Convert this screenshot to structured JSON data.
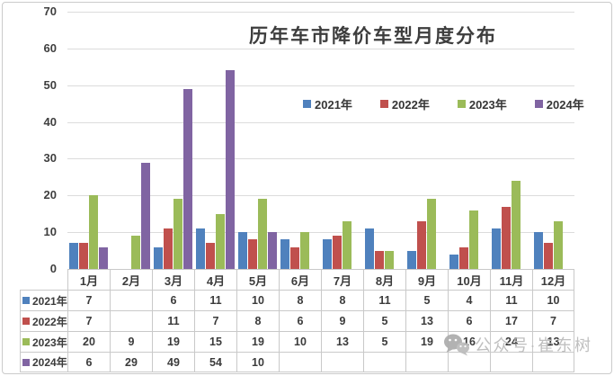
{
  "chart_data": {
    "type": "bar",
    "title": "历年车市降价车型月度分布",
    "categories": [
      "1月",
      "2月",
      "3月",
      "4月",
      "5月",
      "6月",
      "7月",
      "8月",
      "9月",
      "10月",
      "11月",
      "12月"
    ],
    "series": [
      {
        "name": "2021年",
        "color": "#4F81BD",
        "values": [
          7,
          null,
          6,
          11,
          10,
          8,
          8,
          11,
          5,
          4,
          11,
          10
        ]
      },
      {
        "name": "2022年",
        "color": "#C0504D",
        "values": [
          7,
          null,
          11,
          7,
          8,
          6,
          9,
          5,
          13,
          6,
          17,
          7
        ]
      },
      {
        "name": "2023年",
        "color": "#9BBB59",
        "values": [
          20,
          9,
          19,
          15,
          19,
          10,
          13,
          5,
          19,
          16,
          24,
          13
        ]
      },
      {
        "name": "2024年",
        "color": "#8064A2",
        "values": [
          6,
          29,
          49,
          54,
          10,
          null,
          null,
          null,
          null,
          null,
          null,
          null
        ]
      }
    ],
    "ylim": [
      0,
      70
    ],
    "y_ticks": [
      0,
      10,
      20,
      30,
      40,
      50,
      60,
      70
    ],
    "grid": "horizontal-gridlines",
    "legend_position": "inside-upper-right",
    "show_data_table": true,
    "gridline_color": "#dcdcdc",
    "text_color": "#3b3b3b"
  },
  "watermark": {
    "text": "公众号·崔东树",
    "icon": "wechat-icon",
    "color": "#bcbcbc"
  }
}
